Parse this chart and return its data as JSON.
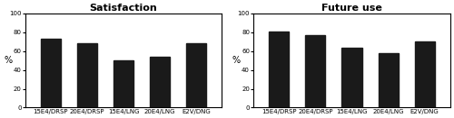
{
  "categories": [
    "15E4/DRSP",
    "20E4/DRSP",
    "15E4/LNG",
    "20E4/LNG",
    "E2V/DNG"
  ],
  "satisfaction_values": [
    73,
    68,
    50,
    54,
    68
  ],
  "future_use_values": [
    81,
    77,
    64,
    58,
    70
  ],
  "bar_color": "#1a1a1a",
  "title_satisfaction": "Satisfaction",
  "title_future_use": "Future use",
  "ylabel": "%",
  "ylim": [
    0,
    100
  ],
  "yticks": [
    0,
    20,
    40,
    60,
    80,
    100
  ],
  "bar_width": 0.55,
  "title_fontsize": 8,
  "tick_fontsize": 5.0,
  "ylabel_fontsize": 7,
  "title_fontweight": "bold"
}
